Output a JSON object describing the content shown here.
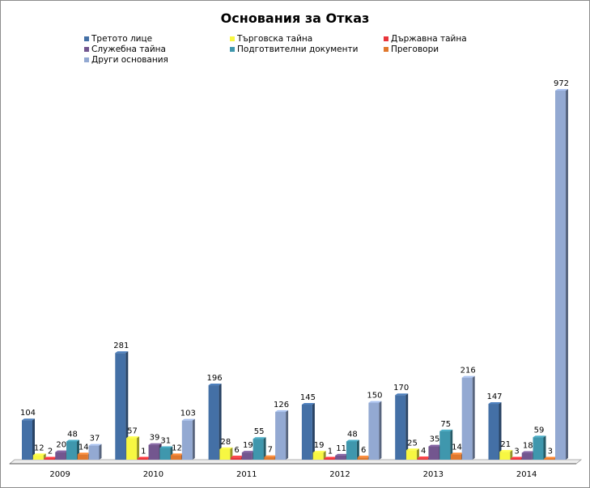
{
  "chart_data": {
    "type": "bar",
    "title": "Основания за Отказ",
    "xlabel": "",
    "ylabel": "",
    "ylim": [
      0,
      972
    ],
    "grid": false,
    "legend_position": "top",
    "categories": [
      "2009",
      "2010",
      "2011",
      "2012",
      "2013",
      "2014"
    ],
    "series": [
      {
        "name": "Третото лице",
        "color": "#4470a6",
        "values": [
          104,
          281,
          196,
          145,
          170,
          147
        ]
      },
      {
        "name": "Търговска тайна",
        "color": "#f7f742",
        "values": [
          12,
          57,
          28,
          19,
          25,
          21
        ]
      },
      {
        "name": "Държавна тайна",
        "color": "#e8353b",
        "values": [
          2,
          1,
          6,
          1,
          4,
          3
        ]
      },
      {
        "name": "Служебна тайна",
        "color": "#73568f",
        "values": [
          20,
          39,
          19,
          11,
          35,
          18
        ]
      },
      {
        "name": "Подготвителни документи",
        "color": "#3f97ad",
        "values": [
          48,
          31,
          55,
          48,
          75,
          59
        ]
      },
      {
        "name": "Преговори",
        "color": "#e0782d",
        "values": [
          14,
          12,
          7,
          6,
          14,
          3
        ]
      },
      {
        "name": "Други основания",
        "color": "#93a9d2",
        "values": [
          37,
          103,
          126,
          150,
          216,
          972
        ]
      }
    ]
  }
}
